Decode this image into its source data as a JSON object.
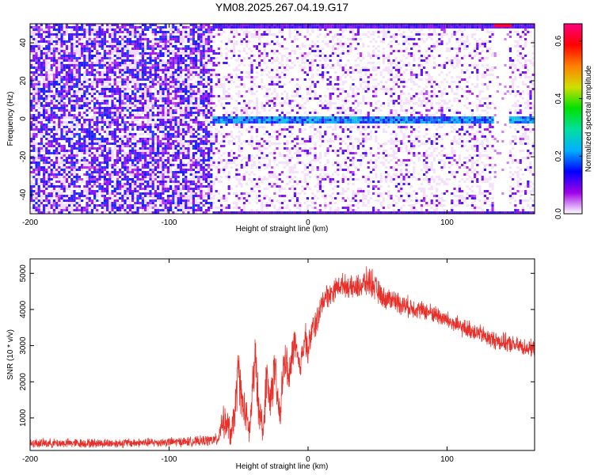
{
  "title": "YM08.2025.267.04.19.G17",
  "chart_data": [
    {
      "type": "heatmap",
      "xlabel": "Height of straight line (km)",
      "ylabel": "Frequency (Hz)",
      "xlim": [
        -200,
        163
      ],
      "ylim": [
        -50,
        50
      ],
      "xticks": [
        -200,
        -100,
        0,
        100
      ],
      "xtick_labels": [
        "-200",
        "-100",
        "0",
        "100"
      ],
      "yticks": [
        -40,
        -20,
        0,
        20,
        40
      ],
      "ytick_labels": [
        "-40",
        "-20",
        "0",
        "20",
        "40"
      ],
      "colorbar": {
        "label": "Normalized spectral amplitude",
        "range": [
          0.0,
          0.66
        ],
        "ticks": [
          0.0,
          0.2,
          0.4,
          0.6
        ],
        "tick_labels": [
          "0.0",
          "0.2",
          "0.4",
          "0.6"
        ],
        "colors": [
          "#ffffff",
          "#a000e8",
          "#0000ff",
          "#00b0ff",
          "#00e0a0",
          "#00e000",
          "#d0e000",
          "#ff8000",
          "#ff0000",
          "#ff0080"
        ]
      },
      "features": {
        "signal_line_frequency_hz": 0,
        "signal_x_range_km": [
          -70,
          163
        ],
        "gap_x_range_km": [
          132,
          143
        ],
        "noise_dense_x_range_km": [
          -200,
          -70
        ],
        "edge_bands_hz": [
          -50,
          50
        ]
      }
    },
    {
      "type": "line",
      "xlabel": "Height of straight line (km)",
      "ylabel": "SNR (10 * v/v)",
      "xlim": [
        -200,
        163
      ],
      "ylim": [
        100,
        5400
      ],
      "xticks": [
        -200,
        -100,
        0,
        100
      ],
      "xtick_labels": [
        "-200",
        "-100",
        "0",
        "100"
      ],
      "yticks": [
        1000,
        2000,
        3000,
        4000,
        5000
      ],
      "ytick_labels": [
        "1000",
        "2000",
        "3000",
        "4000",
        "5000"
      ],
      "series": [
        {
          "color": "#e8302a",
          "x": [
            -200,
            -170,
            -140,
            -110,
            -80,
            -65,
            -62,
            -58,
            -55,
            -52,
            -50,
            -48,
            -45,
            -42,
            -40,
            -38,
            -36,
            -34,
            -32,
            -30,
            -28,
            -26,
            -24,
            -22,
            -20,
            -18,
            -16,
            -14,
            -12,
            -10,
            -8,
            -6,
            -4,
            -2,
            0,
            2,
            5,
            8,
            10,
            13,
            16,
            20,
            25,
            30,
            35,
            40,
            45,
            50,
            55,
            60,
            70,
            80,
            90,
            100,
            110,
            120,
            130,
            140,
            150,
            163
          ],
          "values": [
            300,
            300,
            300,
            320,
            350,
            400,
            900,
            800,
            500,
            1400,
            2500,
            1500,
            1100,
            600,
            1800,
            2600,
            1500,
            1000,
            600,
            2300,
            1500,
            1800,
            2400,
            1500,
            1000,
            2300,
            2700,
            2000,
            2500,
            3200,
            2700,
            2300,
            2900,
            3300,
            2800,
            3300,
            3600,
            3800,
            4200,
            4400,
            4400,
            4600,
            4700,
            4600,
            4600,
            4700,
            4800,
            4500,
            4300,
            4300,
            4100,
            4000,
            3900,
            3700,
            3500,
            3400,
            3200,
            3100,
            3000,
            2900
          ],
          "noise_amplitude": [
            150,
            150,
            150,
            150,
            160,
            200,
            500,
            500,
            500,
            700,
            900,
            700,
            600,
            500,
            800,
            900,
            700,
            600,
            500,
            800,
            700,
            700,
            700,
            600,
            600,
            700,
            600,
            600,
            600,
            600,
            600,
            500,
            500,
            500,
            500,
            500,
            500,
            450,
            400,
            400,
            400,
            350,
            350,
            350,
            400,
            450,
            500,
            400,
            350,
            350,
            350,
            300,
            300,
            300,
            300,
            300,
            300,
            300,
            280,
            280
          ]
        }
      ]
    }
  ]
}
